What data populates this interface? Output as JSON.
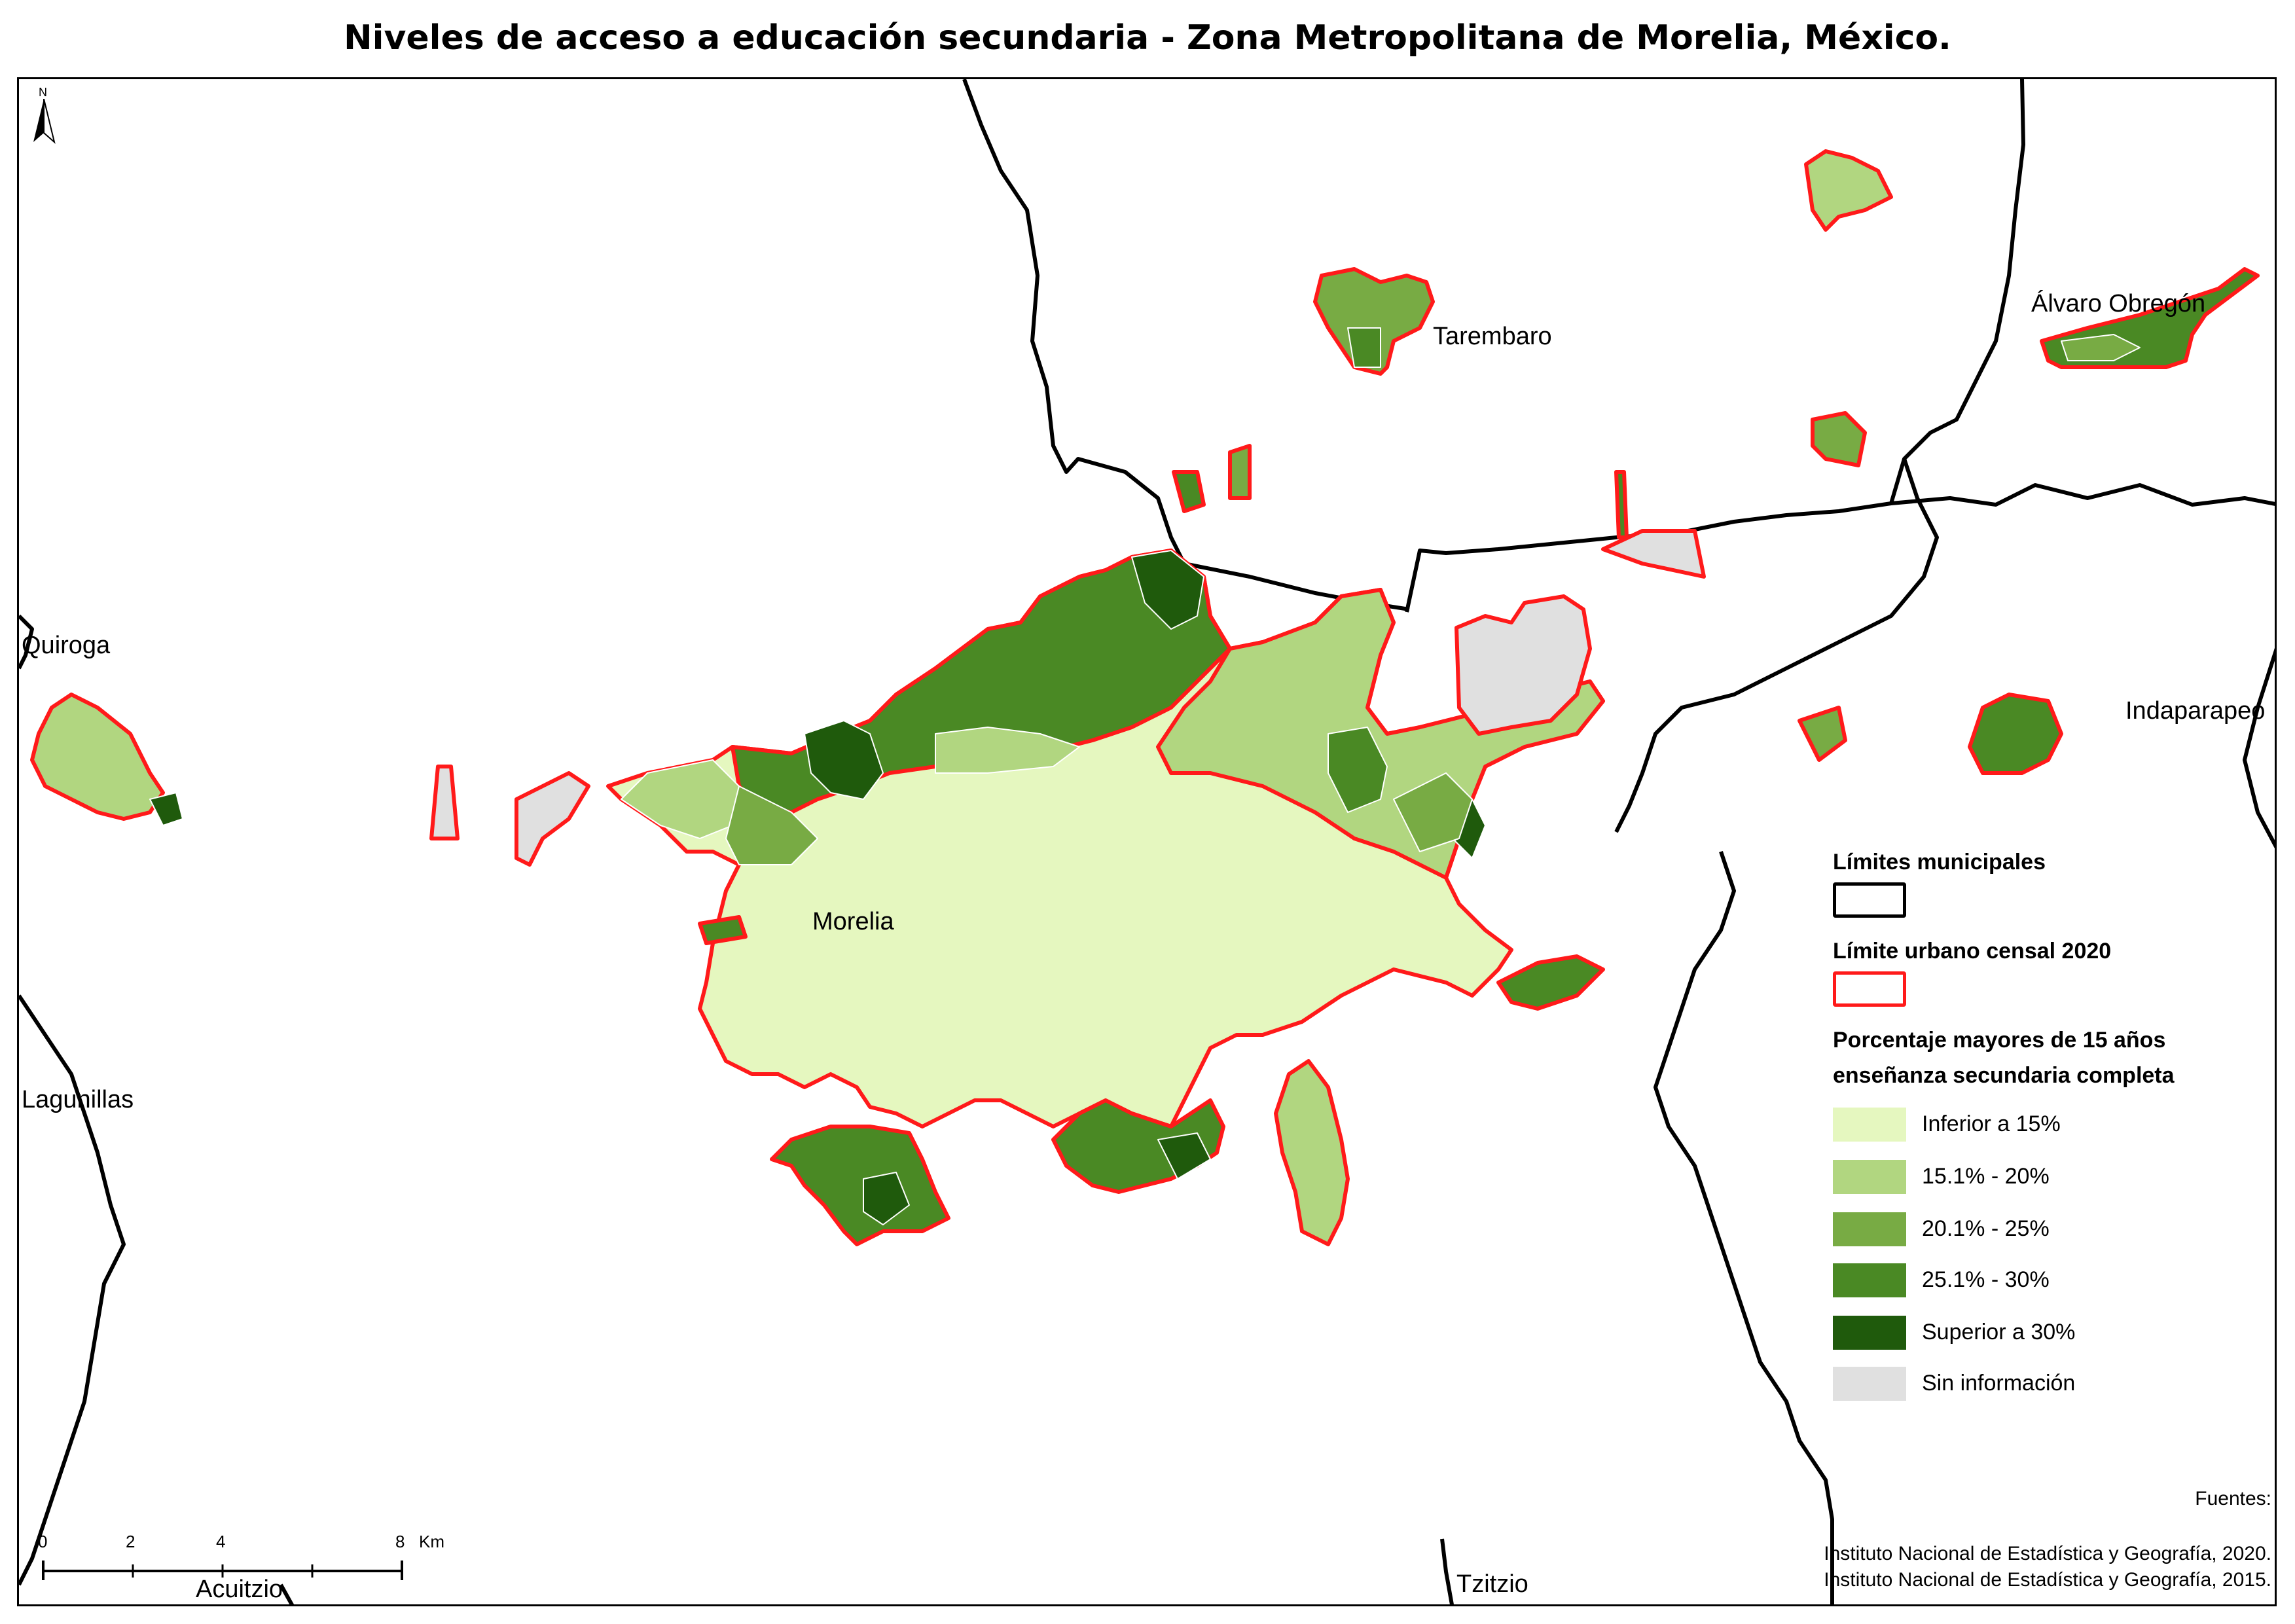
{
  "title": "Niveles de acceso a educación secundaria - Zona Metropolitana de Morelia, México.",
  "north_arrow": {
    "label": "N"
  },
  "places": {
    "morelia": "Morelia",
    "tarembaro": "Tarembaro",
    "alvaro_obregon": "Álvaro Obregón",
    "quiroga": "Quiroga",
    "indaparapeo": "Indaparapeo",
    "lagunillas": "Lagunillas",
    "tzitzio": "Tzitzio",
    "acuitzio": "Acuitzio"
  },
  "legend": {
    "municipal_title": "Límites municipales",
    "urban_title": "Límite urbano censal 2020",
    "pct_title_line1": "Porcentaje mayores de 15 años",
    "pct_title_line2": "enseñanza secundaria completa",
    "classes": [
      {
        "label": "Inferior a 15%",
        "color": "#e5f7bf"
      },
      {
        "label": "15.1% - 20%",
        "color": "#b1d680"
      },
      {
        "label": "20.1% - 25%",
        "color": "#78ab44"
      },
      {
        "label": "25.1% - 30%",
        "color": "#4a8924"
      },
      {
        "label": "Superior a 30%",
        "color": "#1f5a0c"
      },
      {
        "label": "Sin información",
        "color": "#e0e0e0"
      }
    ]
  },
  "colors": {
    "urban_boundary": "#ff1a1a",
    "municipal_boundary": "#000000",
    "internal_lines": "#ffffff"
  },
  "sources": {
    "heading": "Fuentes:",
    "line1": "Instituto Nacional de Estadística y Geografía, 2020.",
    "line2": "Instituto Nacional de Estadística y Geografía, 2015."
  },
  "scale": {
    "ticks": [
      "0",
      "2",
      "4",
      "8"
    ],
    "unit": "Km"
  }
}
